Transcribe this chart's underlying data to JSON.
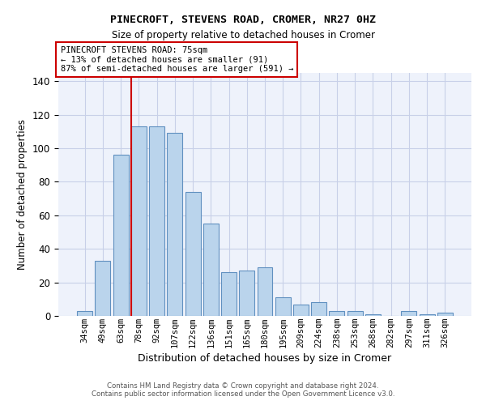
{
  "title1": "PINECROFT, STEVENS ROAD, CROMER, NR27 0HZ",
  "title2": "Size of property relative to detached houses in Cromer",
  "xlabel": "Distribution of detached houses by size in Cromer",
  "ylabel": "Number of detached properties",
  "categories": [
    "34sqm",
    "49sqm",
    "63sqm",
    "78sqm",
    "92sqm",
    "107sqm",
    "122sqm",
    "136sqm",
    "151sqm",
    "165sqm",
    "180sqm",
    "195sqm",
    "209sqm",
    "224sqm",
    "238sqm",
    "253sqm",
    "268sqm",
    "282sqm",
    "297sqm",
    "311sqm",
    "326sqm"
  ],
  "values": [
    3,
    33,
    96,
    113,
    113,
    109,
    74,
    55,
    26,
    27,
    29,
    11,
    7,
    8,
    3,
    3,
    1,
    0,
    3,
    1,
    2
  ],
  "bar_color": "#bad4ec",
  "bar_edge_color": "#6090c0",
  "annotation_text": "PINECROFT STEVENS ROAD: 75sqm\n← 13% of detached houses are smaller (91)\n87% of semi-detached houses are larger (591) →",
  "vline_x_index": 3,
  "vline_color": "#cc0000",
  "ylim": [
    0,
    145
  ],
  "yticks": [
    0,
    20,
    40,
    60,
    80,
    100,
    120,
    140
  ],
  "footer1": "Contains HM Land Registry data © Crown copyright and database right 2024.",
  "footer2": "Contains public sector information licensed under the Open Government Licence v3.0.",
  "bg_color": "#eef2fb",
  "grid_color": "#c8d0e8"
}
